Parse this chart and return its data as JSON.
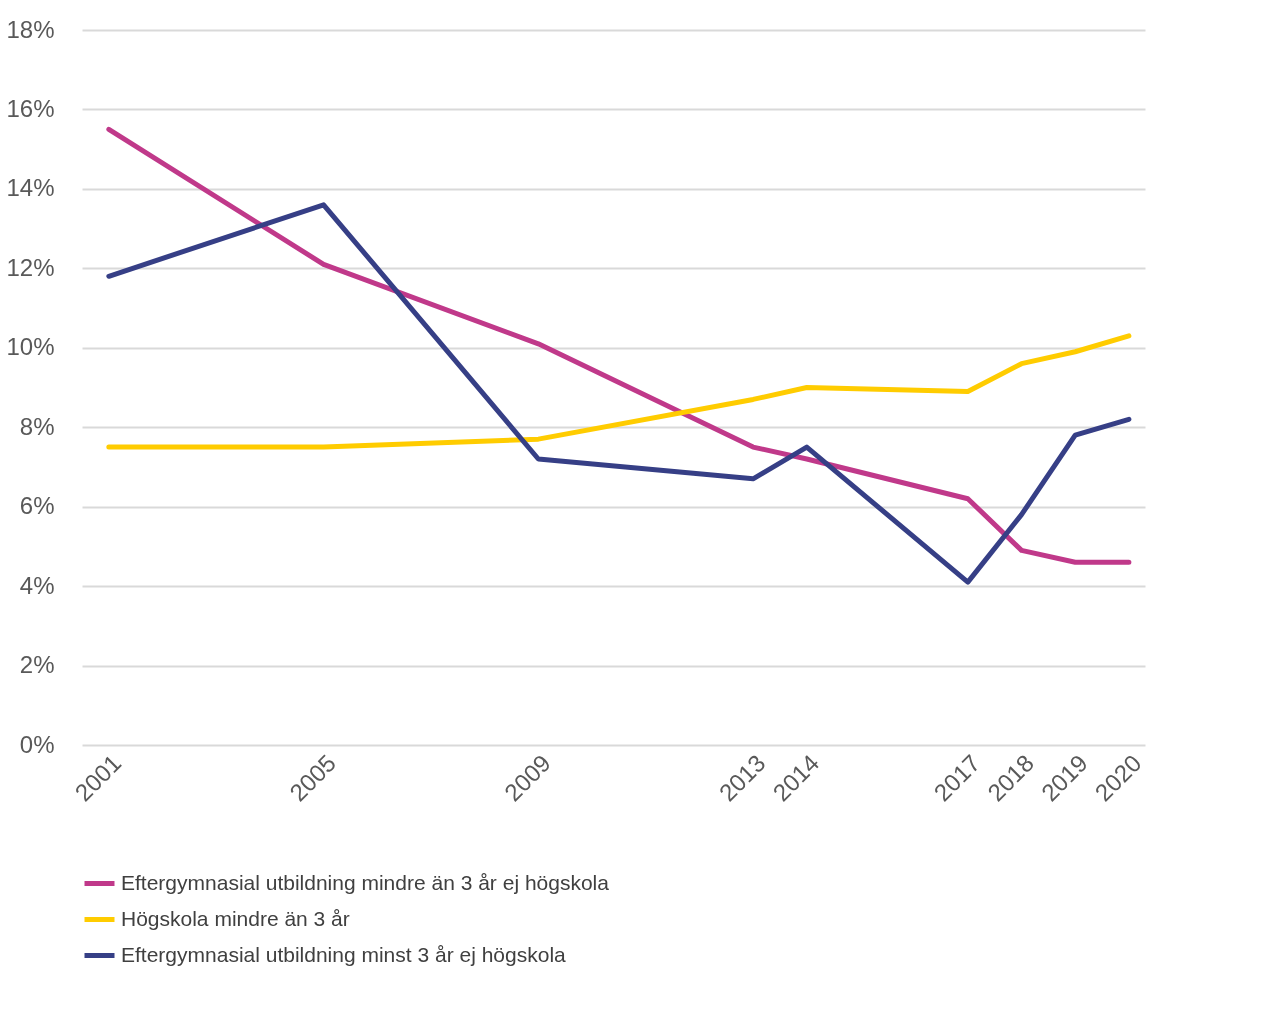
{
  "chart_data": {
    "type": "line",
    "x": [
      2001,
      2005,
      2009,
      2013,
      2014,
      2017,
      2018,
      2019,
      2020
    ],
    "series": [
      {
        "name": "Eftergymnasial utbildning mindre än 3 år ej högskola",
        "color": "#c0398a",
        "values": [
          15.5,
          12.1,
          10.1,
          7.5,
          7.2,
          6.2,
          4.9,
          4.6,
          4.6
        ]
      },
      {
        "name": "Högskola mindre än 3 år",
        "color": "#ffcc00",
        "values": [
          7.5,
          7.5,
          7.7,
          8.7,
          9.0,
          8.9,
          9.6,
          9.9,
          10.3
        ]
      },
      {
        "name": "Eftergymnasial utbildning minst 3 år ej högskola",
        "color": "#363f86",
        "values": [
          11.8,
          13.6,
          7.2,
          6.7,
          7.5,
          4.1,
          5.8,
          7.8,
          8.2
        ]
      }
    ],
    "xlim": [
      2000.5,
      2020.3
    ],
    "xticks": [
      2001,
      2005,
      2009,
      2013,
      2014,
      2017,
      2018,
      2019,
      2020
    ],
    "ylim": [
      0,
      18
    ],
    "yticks": [
      {
        "value": 0,
        "label": "0%"
      },
      {
        "value": 2,
        "label": "2%"
      },
      {
        "value": 4,
        "label": "4%"
      },
      {
        "value": 6,
        "label": "6%"
      },
      {
        "value": 8,
        "label": "8%"
      },
      {
        "value": 10,
        "label": "10%"
      },
      {
        "value": 12,
        "label": "12%"
      },
      {
        "value": 14,
        "label": "14%"
      },
      {
        "value": 16,
        "label": "16%"
      },
      {
        "value": 18,
        "label": "18%"
      }
    ],
    "grid": "y",
    "legend": "bottom",
    "line_style": "solid"
  }
}
